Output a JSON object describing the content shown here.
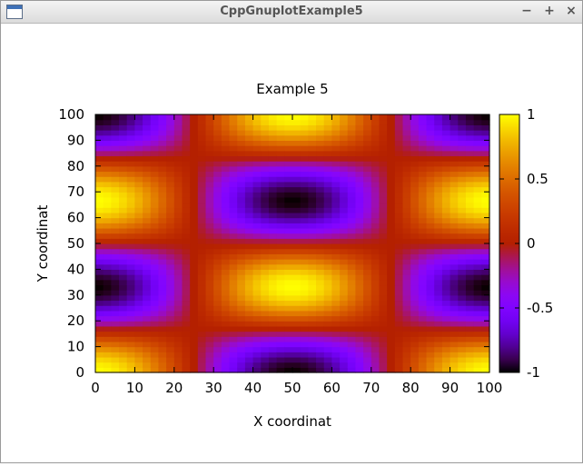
{
  "window": {
    "title": "CppGnuplotExample5",
    "controls": {
      "minimize": "−",
      "maximize": "+",
      "close": "×"
    }
  },
  "chart_data": {
    "type": "heatmap",
    "title": "Example 5",
    "xlabel": "X coordinat",
    "ylabel": "Y coordinat",
    "xlim": [
      0,
      100
    ],
    "ylim": [
      0,
      100
    ],
    "xticks": [
      "0",
      "10",
      "20",
      "30",
      "40",
      "50",
      "60",
      "70",
      "80",
      "90",
      "100"
    ],
    "yticks": [
      "0",
      "10",
      "20",
      "30",
      "40",
      "50",
      "60",
      "70",
      "80",
      "90",
      "100"
    ],
    "colorbar": {
      "range": [
        -1,
        1
      ],
      "ticks": [
        "1",
        "0.5",
        "0",
        "-0.5",
        "-1"
      ],
      "palette": "black-blue-purple-red-orange-yellow"
    },
    "function": "sin(2*pi*x/100 + pi/2) * sin(3*pi*y/100 + pi/2)",
    "grid": false,
    "legend": "none"
  }
}
